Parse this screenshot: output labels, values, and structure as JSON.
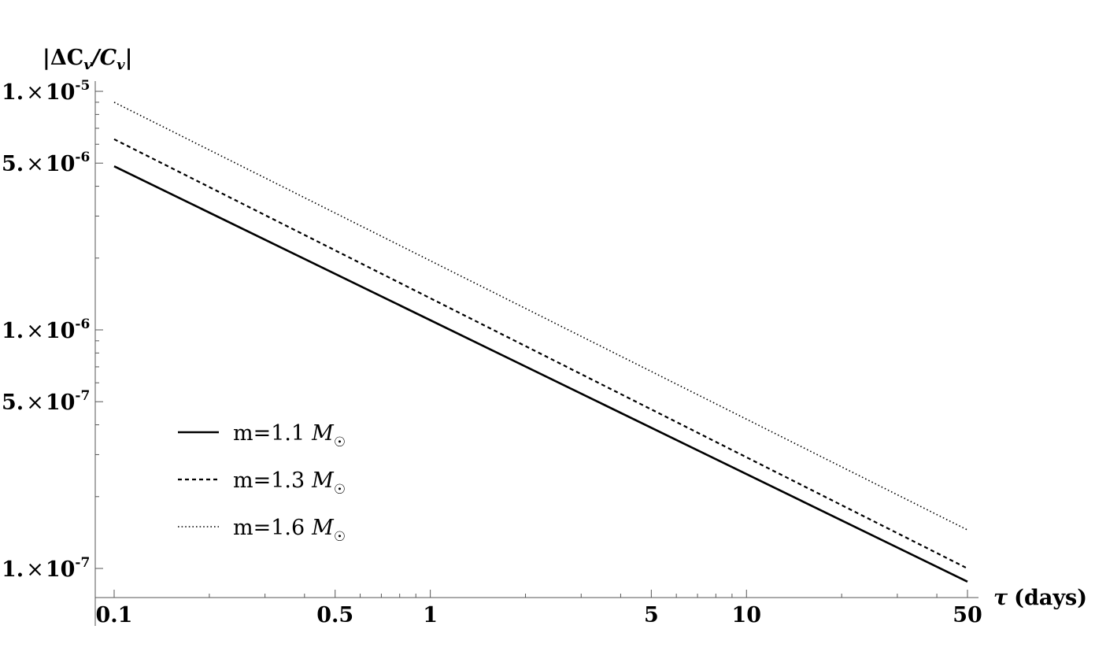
{
  "chart_data": {
    "type": "line",
    "x_scale": "log",
    "y_scale": "log",
    "xlabel": {
      "prefix": "τ",
      "text": "(days)"
    },
    "ylabel": {
      "text": "|ΔC",
      "sub1": "v",
      "mid": "/C",
      "sub2": "v",
      "end": "|"
    },
    "xlim": [
      0.09,
      55
    ],
    "ylim": [
      8.5e-08,
      1.1e-05
    ],
    "x_ticks": [
      {
        "value": 0.1,
        "label": "0.1"
      },
      {
        "value": 0.5,
        "label": "0.5"
      },
      {
        "value": 1,
        "label": "1"
      },
      {
        "value": 5,
        "label": "5"
      },
      {
        "value": 10,
        "label": "10"
      },
      {
        "value": 50,
        "label": "50"
      }
    ],
    "y_ticks": [
      {
        "value": 1e-05,
        "mantissa": "1.",
        "exponent": "-5"
      },
      {
        "value": 5e-06,
        "mantissa": "5.",
        "exponent": "-6"
      },
      {
        "value": 1e-06,
        "mantissa": "1.",
        "exponent": "-6"
      },
      {
        "value": 5e-07,
        "mantissa": "5.",
        "exponent": "-7"
      },
      {
        "value": 1e-07,
        "mantissa": "1.",
        "exponent": "-7"
      }
    ],
    "series": [
      {
        "name": "m=1.1",
        "unit": "M",
        "style": "solid",
        "x": [
          0.1,
          50
        ],
        "y": [
          4.85e-06,
          8.8e-08
        ]
      },
      {
        "name": "m=1.3",
        "unit": "M",
        "style": "dashed",
        "x": [
          0.1,
          50
        ],
        "y": [
          6.3e-06,
          1e-07
        ]
      },
      {
        "name": "m=1.6",
        "unit": "M",
        "style": "dotted",
        "x": [
          0.1,
          50
        ],
        "y": [
          9e-06,
          1.45e-07
        ]
      }
    ],
    "legend": "bottom-left",
    "grid": false,
    "line_color": "#000000",
    "axis_color": "#555555"
  }
}
